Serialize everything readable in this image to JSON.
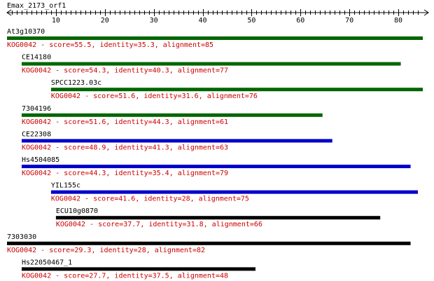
{
  "query": {
    "name": "Emax_2173_orf1",
    "axis_max": 85
  },
  "axis": {
    "ticks": [
      10,
      20,
      30,
      40,
      50,
      60,
      70,
      80
    ]
  },
  "colors": {
    "green": "#006600",
    "blue": "#0000cc",
    "black": "#000000",
    "annotation": "#cc0000"
  },
  "hits": [
    {
      "name": "At3g10370",
      "start": 0,
      "end": 85,
      "color": "green",
      "kog": "KOG0042",
      "score": "55.5",
      "identity": "35.3",
      "alignment": "85"
    },
    {
      "name": "CE14180",
      "start": 3,
      "end": 80.5,
      "color": "green",
      "kog": "KOG0042",
      "score": "54.3",
      "identity": "40.3",
      "alignment": "77"
    },
    {
      "name": "SPCC1223.03c",
      "start": 9,
      "end": 85,
      "color": "green",
      "kog": "KOG0042",
      "score": "51.6",
      "identity": "31.6",
      "alignment": "76"
    },
    {
      "name": "7304196",
      "start": 3,
      "end": 64.5,
      "color": "green",
      "kog": "KOG0042",
      "score": "51.6",
      "identity": "44.3",
      "alignment": "61"
    },
    {
      "name": "CE22308",
      "start": 3,
      "end": 66.5,
      "color": "blue",
      "kog": "KOG0042",
      "score": "48.9",
      "identity": "41.3",
      "alignment": "63"
    },
    {
      "name": "Hs4504085",
      "start": 3,
      "end": 82.5,
      "color": "blue",
      "kog": "KOG0042",
      "score": "44.3",
      "identity": "35.4",
      "alignment": "79"
    },
    {
      "name": "YIL155c",
      "start": 9,
      "end": 84,
      "color": "blue",
      "kog": "KOG0042",
      "score": "41.6",
      "identity": "28",
      "alignment": "75"
    },
    {
      "name": "ECU10g0870",
      "start": 10,
      "end": 76.3,
      "color": "black",
      "kog": "KOG0042",
      "score": "37.7",
      "identity": "31.8",
      "alignment": "66"
    },
    {
      "name": "7303030",
      "start": 0,
      "end": 82.5,
      "color": "black",
      "kog": "KOG0042",
      "score": "29.3",
      "identity": "28",
      "alignment": "82"
    },
    {
      "name": "Hs22050467_1",
      "start": 3,
      "end": 50.8,
      "color": "black",
      "kog": "KOG0042",
      "score": "27.7",
      "identity": "37.5",
      "alignment": "48"
    }
  ]
}
